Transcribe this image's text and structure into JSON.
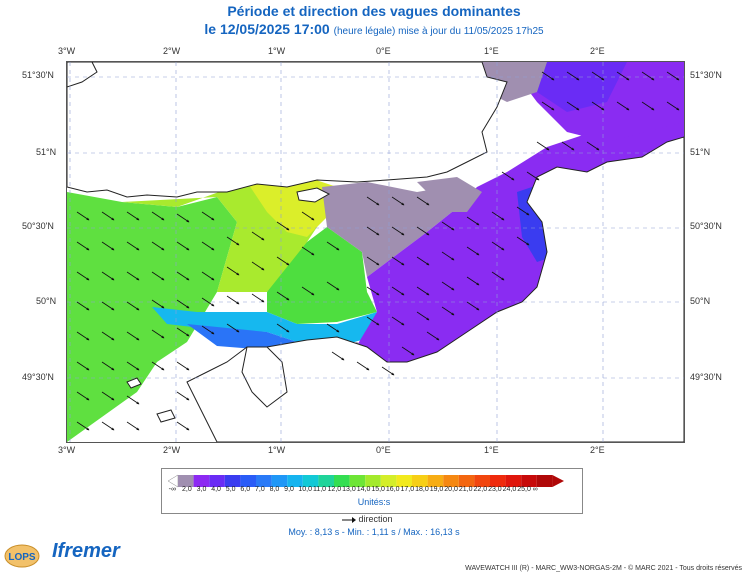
{
  "header": {
    "title": "Période et direction des vagues dominantes",
    "date": "le 12/05/2025 17:00",
    "subtitle": "(heure légale) mise à jour du 11/05/2025 17h25"
  },
  "axes": {
    "x_top": [
      "3°W",
      "2°W",
      "1°W",
      "0°E",
      "1°E",
      "2°E"
    ],
    "x_bottom": [
      "3°W",
      "2°W",
      "1°W",
      "0°E",
      "1°E",
      "2°E"
    ],
    "y_left": [
      "51°30'N",
      "51°N",
      "50°30'N",
      "50°N",
      "49°30'N"
    ],
    "y_right": [
      "51°30'N",
      "51°N",
      "50°30'N",
      "50°N",
      "49°30'N"
    ]
  },
  "legend": {
    "labels": [
      "-∞",
      "2,0",
      "3,0",
      "4,0",
      "5,0",
      "6,0",
      "7,0",
      "8,0",
      "9,0",
      "10,0",
      "11,0",
      "12,0",
      "13,0",
      "14,0",
      "15,0",
      "16,0",
      "17,0",
      "18,0",
      "19,0",
      "20,0",
      "21,0",
      "22,0",
      "23,0",
      "24,0",
      "25,0",
      "∞"
    ],
    "colors": [
      "#ffffff",
      "#a08fb0",
      "#8c29f2",
      "#6a2cf5",
      "#3a3cf0",
      "#2a5cf7",
      "#2a7af7",
      "#1f97f7",
      "#16b4ef",
      "#12c9d6",
      "#20d49a",
      "#34de52",
      "#6ee536",
      "#a4ea2c",
      "#d4ee2a",
      "#f2ea1e",
      "#f7cf16",
      "#f7ad14",
      "#f58812",
      "#f36610",
      "#f1460e",
      "#ef2a0c",
      "#e0160c",
      "#c70a0a"
    ],
    "units": "Unités:s",
    "direction_label": "direction"
  },
  "stats": {
    "text": "Moy. : 8,13 s   -   Min. : 1,11 s / Max. : 16,13 s"
  },
  "footer": {
    "text": "WAVEWATCH III (R) - MARC_WW3-NORGAS-2M - © MARC 2021 - Tous droits réservés",
    "logo_left": "LOPS",
    "logo_right": "Ifremer"
  }
}
